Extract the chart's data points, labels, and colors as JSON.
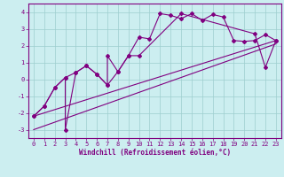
{
  "xlabel": "Windchill (Refroidissement éolien,°C)",
  "xlim": [
    -0.5,
    23.5
  ],
  "ylim": [
    -3.5,
    4.5
  ],
  "yticks": [
    -3,
    -2,
    -1,
    0,
    1,
    2,
    3,
    4
  ],
  "xticks": [
    0,
    1,
    2,
    3,
    4,
    5,
    6,
    7,
    8,
    9,
    10,
    11,
    12,
    13,
    14,
    15,
    16,
    17,
    18,
    19,
    20,
    21,
    22,
    23
  ],
  "bg_color": "#cceef0",
  "line_color": "#800080",
  "grid_color": "#9ecece",
  "series1_x": [
    0,
    1,
    2,
    3,
    4,
    5,
    6,
    7,
    8,
    9,
    10,
    11,
    12,
    13,
    14,
    15,
    16,
    17,
    18,
    19,
    20,
    21,
    22,
    23
  ],
  "series1_y": [
    -2.2,
    -1.6,
    -0.5,
    0.1,
    0.4,
    0.8,
    0.3,
    -0.35,
    0.45,
    1.4,
    2.5,
    2.4,
    3.9,
    3.8,
    3.6,
    3.9,
    3.5,
    3.85,
    3.7,
    2.3,
    2.25,
    2.3,
    2.65,
    2.3
  ],
  "series2_x": [
    0,
    1,
    2,
    3,
    3,
    4,
    5,
    6,
    7,
    7,
    8,
    9,
    10,
    14,
    21,
    22,
    23
  ],
  "series2_y": [
    -2.2,
    -1.6,
    -0.5,
    0.1,
    -3.0,
    0.4,
    0.8,
    0.3,
    -0.35,
    1.4,
    0.45,
    1.4,
    1.4,
    3.9,
    2.7,
    0.7,
    2.3
  ],
  "line1_x": [
    0,
    23
  ],
  "line1_y": [
    -2.2,
    2.3
  ],
  "line2_x": [
    0,
    23
  ],
  "line2_y": [
    -3.0,
    2.1
  ],
  "marker": "D",
  "markersize": 2.0,
  "linewidth": 0.8,
  "tick_fontsize": 5.0,
  "xlabel_fontsize": 5.5
}
